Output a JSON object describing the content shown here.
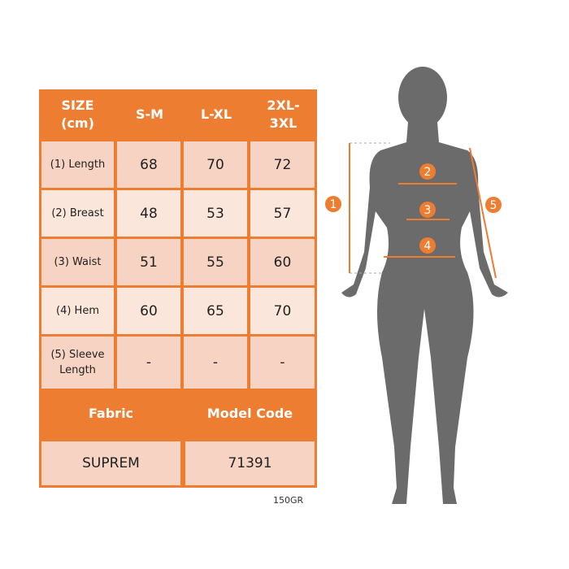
{
  "table": {
    "header": [
      "SIZE\n(cm)",
      "S-M",
      "L-XL",
      "2XL-\n3XL"
    ],
    "rows": [
      {
        "label": "(1) Length",
        "values": [
          "68",
          "70",
          "72"
        ]
      },
      {
        "label": "(2) Breast",
        "values": [
          "48",
          "53",
          "57"
        ]
      },
      {
        "label": "(3) Waist",
        "values": [
          "51",
          "55",
          "60"
        ]
      },
      {
        "label": "(4) Hem",
        "values": [
          "60",
          "65",
          "70"
        ]
      },
      {
        "label": "(5) Sleeve Length",
        "values": [
          "-",
          "-",
          "-"
        ]
      }
    ],
    "fabric_header": "Fabric",
    "model_header": "Model Code",
    "fabric": "SUPREM",
    "model_code": "71391"
  },
  "weight_note": "150GR",
  "figure": {
    "markers": [
      "1",
      "2",
      "3",
      "4",
      "5"
    ]
  },
  "colors": {
    "accent": "#ED7D31",
    "silhouette": "#6B6B6B"
  }
}
